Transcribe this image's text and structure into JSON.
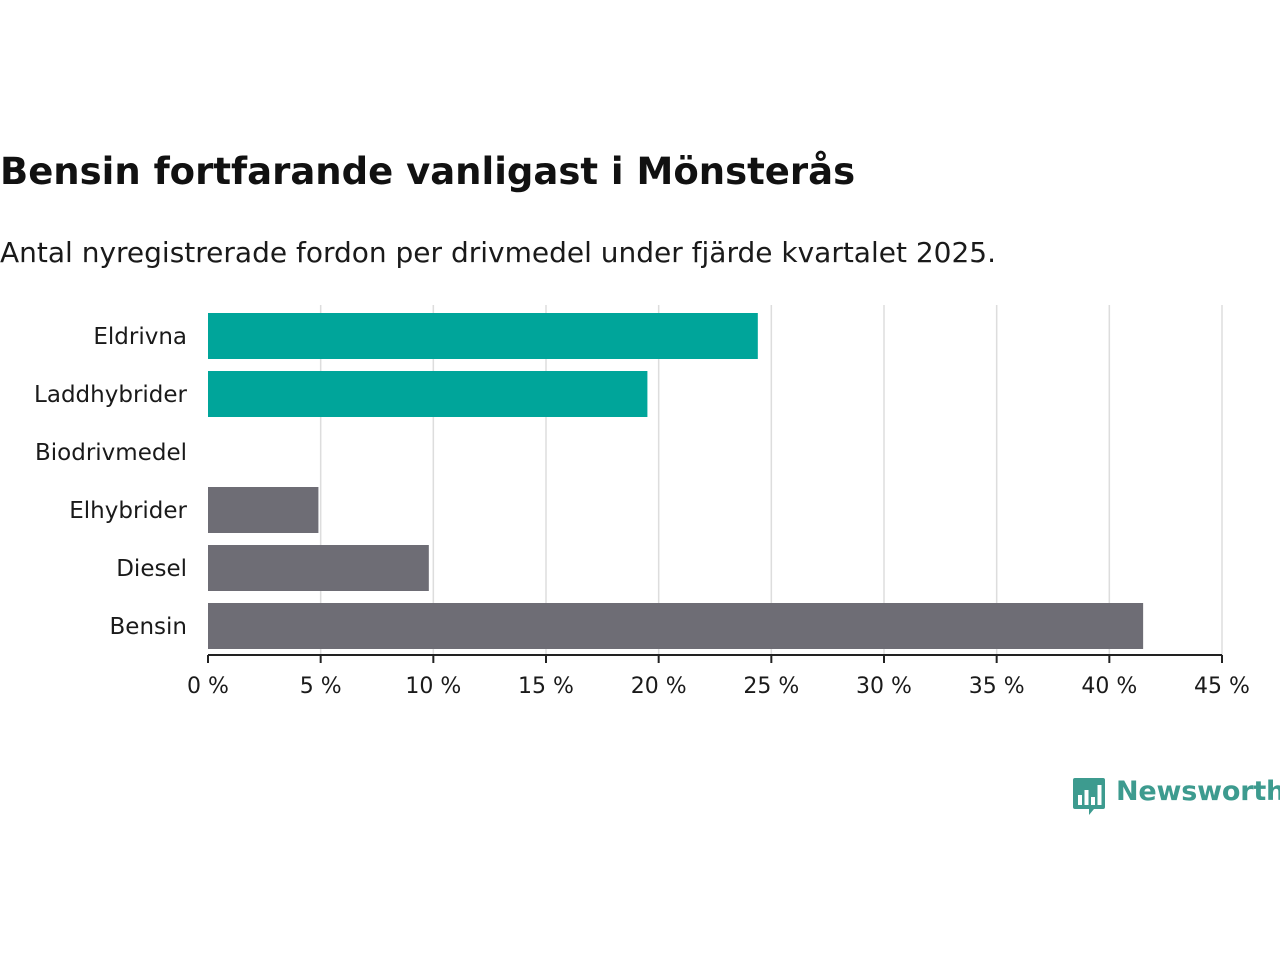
{
  "chart_data": {
    "type": "bar",
    "orientation": "horizontal",
    "title": "Bensin fortfarande vanligast i Mönsterås",
    "subtitle": "Antal nyregistrerade fordon per drivmedel under fjärde kvartalet 2025.",
    "categories": [
      "Eldrivna",
      "Laddhybrider",
      "Biodrivmedel",
      "Elhybrider",
      "Diesel",
      "Bensin"
    ],
    "values": [
      24.4,
      19.5,
      0,
      4.9,
      9.8,
      41.5
    ],
    "colors": [
      "#00a59a",
      "#00a59a",
      "#00a59a",
      "#6e6d75",
      "#6e6d75",
      "#6e6d75"
    ],
    "xlim": [
      0,
      45
    ],
    "xticks": [
      0,
      5,
      10,
      15,
      20,
      25,
      30,
      35,
      40,
      45
    ],
    "xtick_labels": [
      "0 %",
      "5 %",
      "10 %",
      "15 %",
      "20 %",
      "25 %",
      "30 %",
      "35 %",
      "40 %",
      "45 %"
    ],
    "xlabel": "",
    "ylabel": "",
    "grid": true
  },
  "brand": {
    "name": "Newsworthy",
    "color": "#3d9b8f",
    "icon": "bar-chart-speech-bubble-icon"
  },
  "colors": {
    "grid": "#dddddd",
    "axis": "#222222",
    "text": "#1a1a1a"
  }
}
